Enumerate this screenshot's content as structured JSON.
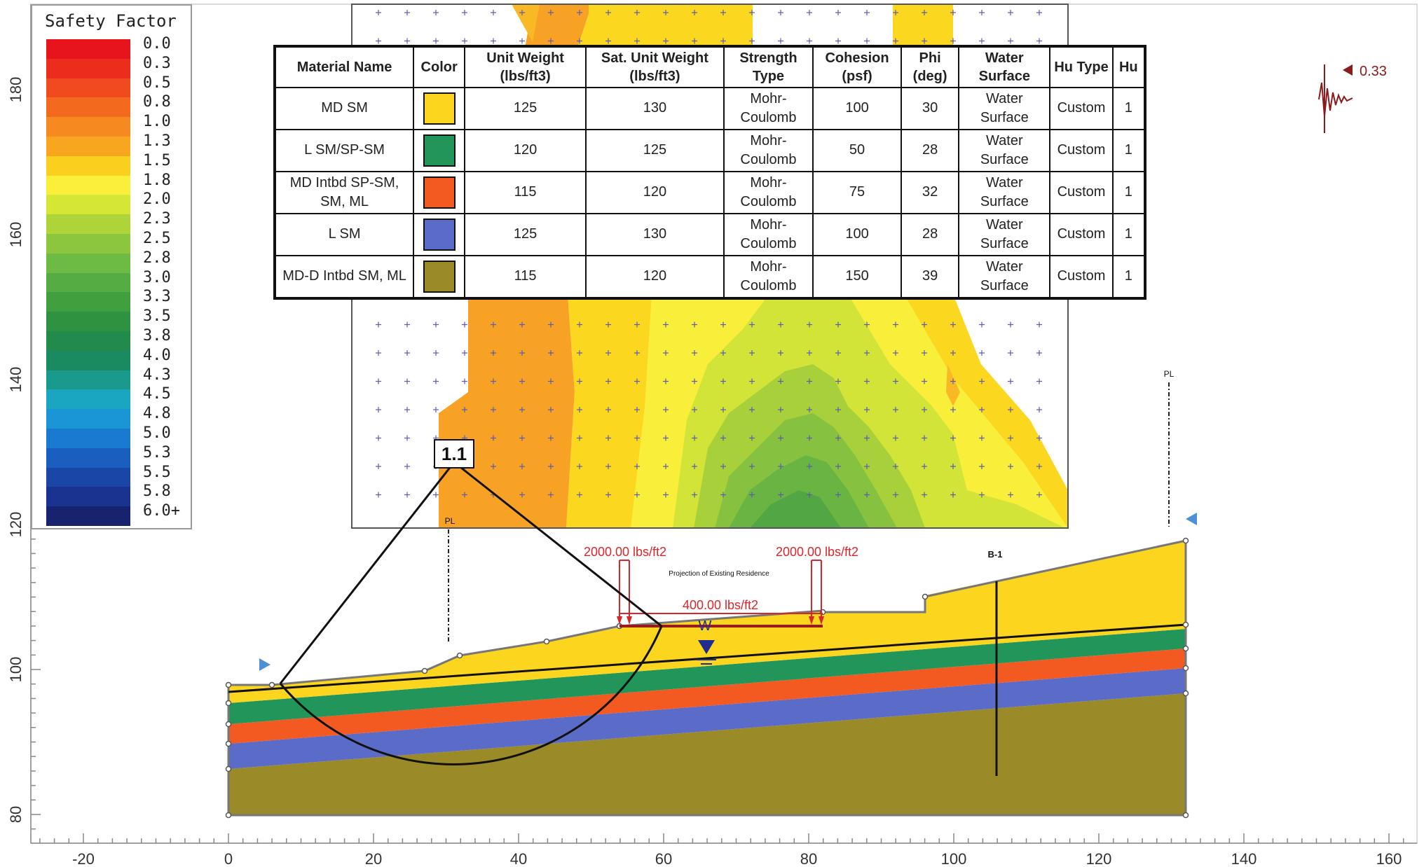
{
  "legend": {
    "title": "Safety Factor",
    "entries": [
      {
        "label": "0.0",
        "color": "#e8141b"
      },
      {
        "label": "0.3",
        "color": "#ec2d1c"
      },
      {
        "label": "0.5",
        "color": "#f04a1e"
      },
      {
        "label": "0.8",
        "color": "#f36a1f"
      },
      {
        "label": "1.0",
        "color": "#f68a20"
      },
      {
        "label": "1.3",
        "color": "#f8a61f"
      },
      {
        "label": "1.5",
        "color": "#fbcf1e"
      },
      {
        "label": "1.8",
        "color": "#fcef3c"
      },
      {
        "label": "2.0",
        "color": "#d6e635"
      },
      {
        "label": "2.3",
        "color": "#aed43a"
      },
      {
        "label": "2.5",
        "color": "#8cc63f"
      },
      {
        "label": "2.8",
        "color": "#6dba44"
      },
      {
        "label": "3.0",
        "color": "#55ac43"
      },
      {
        "label": "3.3",
        "color": "#40a040"
      },
      {
        "label": "3.5",
        "color": "#2e9240"
      },
      {
        "label": "3.8",
        "color": "#228a4a"
      },
      {
        "label": "4.0",
        "color": "#1a8a60"
      },
      {
        "label": "4.3",
        "color": "#1a9a8c"
      },
      {
        "label": "4.5",
        "color": "#1aa6c0"
      },
      {
        "label": "4.8",
        "color": "#1a96d6"
      },
      {
        "label": "5.0",
        "color": "#1a7ad0"
      },
      {
        "label": "5.3",
        "color": "#1a5ec0"
      },
      {
        "label": "5.5",
        "color": "#1a46a8"
      },
      {
        "label": "5.8",
        "color": "#1a3290"
      },
      {
        "label": "6.0+",
        "color": "#17236e"
      }
    ]
  },
  "material_table": {
    "headers": [
      "Material Name",
      "Color",
      "Unit Weight (lbs/ft3)",
      "Sat. Unit Weight (lbs/ft3)",
      "Strength Type",
      "Cohesion (psf)",
      "Phi (deg)",
      "Water Surface",
      "Hu Type",
      "Hu"
    ],
    "rows": [
      {
        "name": "MD SM",
        "color": "#fbd51e",
        "unit_weight": "125",
        "sat_unit_weight": "130",
        "strength_type": "Mohr-Coulomb",
        "cohesion": "100",
        "phi": "30",
        "water_surface": "Water Surface",
        "hu_type": "Custom",
        "hu": "1"
      },
      {
        "name": "L SM/SP-SM",
        "color": "#22965a",
        "unit_weight": "120",
        "sat_unit_weight": "125",
        "strength_type": "Mohr-Coulomb",
        "cohesion": "50",
        "phi": "28",
        "water_surface": "Water Surface",
        "hu_type": "Custom",
        "hu": "1"
      },
      {
        "name": "MD Intbd SP-SM, SM, ML",
        "color": "#f25a22",
        "unit_weight": "115",
        "sat_unit_weight": "120",
        "strength_type": "Mohr-Coulomb",
        "cohesion": "75",
        "phi": "32",
        "water_surface": "Water Surface",
        "hu_type": "Custom",
        "hu": "1"
      },
      {
        "name": "L SM",
        "color": "#5b6bc8",
        "unit_weight": "125",
        "sat_unit_weight": "130",
        "strength_type": "Mohr-Coulomb",
        "cohesion": "100",
        "phi": "28",
        "water_surface": "Water Surface",
        "hu_type": "Custom",
        "hu": "1"
      },
      {
        "name": "MD-D Intbd SM, ML",
        "color": "#9b8a28",
        "unit_weight": "115",
        "sat_unit_weight": "120",
        "strength_type": "Mohr-Coulomb",
        "cohesion": "150",
        "phi": "39",
        "water_surface": "Water Surface",
        "hu_type": "Custom",
        "hu": "1"
      }
    ]
  },
  "annotations": {
    "safety_factor_box": "1.1",
    "seismic_coefficient": "0.33",
    "load_left": "2000.00 lbs/ft2",
    "load_right": "2000.00 lbs/ft2",
    "load_middle": "400.00 lbs/ft2",
    "residence_label": "Projection of Existing Residence",
    "water_marker": "W",
    "boring_label": "B-1",
    "pl_left": "PL",
    "pl_right": "PL"
  },
  "axes": {
    "x_ticks": [
      "-20",
      "0",
      "20",
      "40",
      "60",
      "80",
      "100",
      "120",
      "140",
      "160"
    ],
    "y_ticks": [
      "80",
      "100",
      "120",
      "140",
      "160",
      "180"
    ]
  },
  "colors": {
    "layer_md_sm": "#fbd51e",
    "layer_l_sm_sp": "#22965a",
    "layer_md_intbd": "#f25a22",
    "layer_l_sm": "#5b6bc8",
    "layer_md_d": "#9b8a28",
    "load_red": "#d9262a",
    "seismic": "#8b1a1a"
  }
}
